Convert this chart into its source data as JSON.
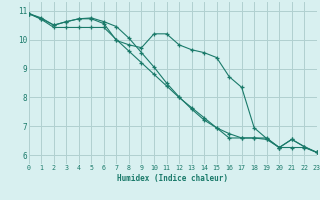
{
  "bg_color": "#d8f0f0",
  "grid_color": "#b0d0d0",
  "line_color": "#1a7a6a",
  "xlabel": "Humidex (Indice chaleur)",
  "xlim": [
    0,
    23
  ],
  "ylim": [
    5.7,
    11.3
  ],
  "yticks": [
    6,
    7,
    8,
    9,
    10,
    11
  ],
  "xticks": [
    0,
    1,
    2,
    3,
    4,
    5,
    6,
    7,
    8,
    9,
    10,
    11,
    12,
    13,
    14,
    15,
    16,
    17,
    18,
    19,
    20,
    21,
    22,
    23
  ],
  "curve1_x": [
    0,
    1,
    2,
    3,
    4,
    5,
    6,
    7,
    8,
    9,
    10,
    11,
    12,
    13,
    14,
    15,
    16,
    17,
    18,
    19,
    20,
    21,
    22,
    23
  ],
  "curve1_y": [
    10.9,
    10.75,
    10.5,
    10.62,
    10.72,
    10.72,
    10.55,
    9.97,
    9.82,
    9.72,
    10.2,
    10.2,
    9.82,
    9.65,
    9.55,
    9.38,
    8.72,
    8.35,
    6.95,
    6.58,
    6.27,
    6.55,
    6.3,
    6.1
  ],
  "curve2_x": [
    0,
    1,
    2,
    3,
    4,
    5,
    6,
    7,
    8,
    9,
    10,
    11,
    12,
    13,
    14,
    15,
    16,
    17,
    18,
    19,
    20,
    21,
    22,
    23
  ],
  "curve2_y": [
    10.9,
    10.7,
    10.42,
    10.42,
    10.42,
    10.42,
    10.42,
    10.0,
    9.6,
    9.2,
    8.8,
    8.4,
    8.0,
    7.65,
    7.3,
    6.95,
    6.6,
    6.6,
    6.6,
    6.6,
    6.27,
    6.27,
    6.27,
    6.1
  ],
  "curve3_x": [
    0,
    1,
    2,
    3,
    4,
    5,
    6,
    7,
    8,
    9,
    10,
    11,
    12,
    13,
    14,
    15,
    16,
    17,
    18,
    19,
    20,
    21,
    22,
    23
  ],
  "curve3_y": [
    10.9,
    10.72,
    10.5,
    10.62,
    10.72,
    10.75,
    10.62,
    10.45,
    10.05,
    9.55,
    9.05,
    8.5,
    8.02,
    7.6,
    7.22,
    6.95,
    6.75,
    6.6,
    6.6,
    6.55,
    6.27,
    6.55,
    6.3,
    6.1
  ]
}
